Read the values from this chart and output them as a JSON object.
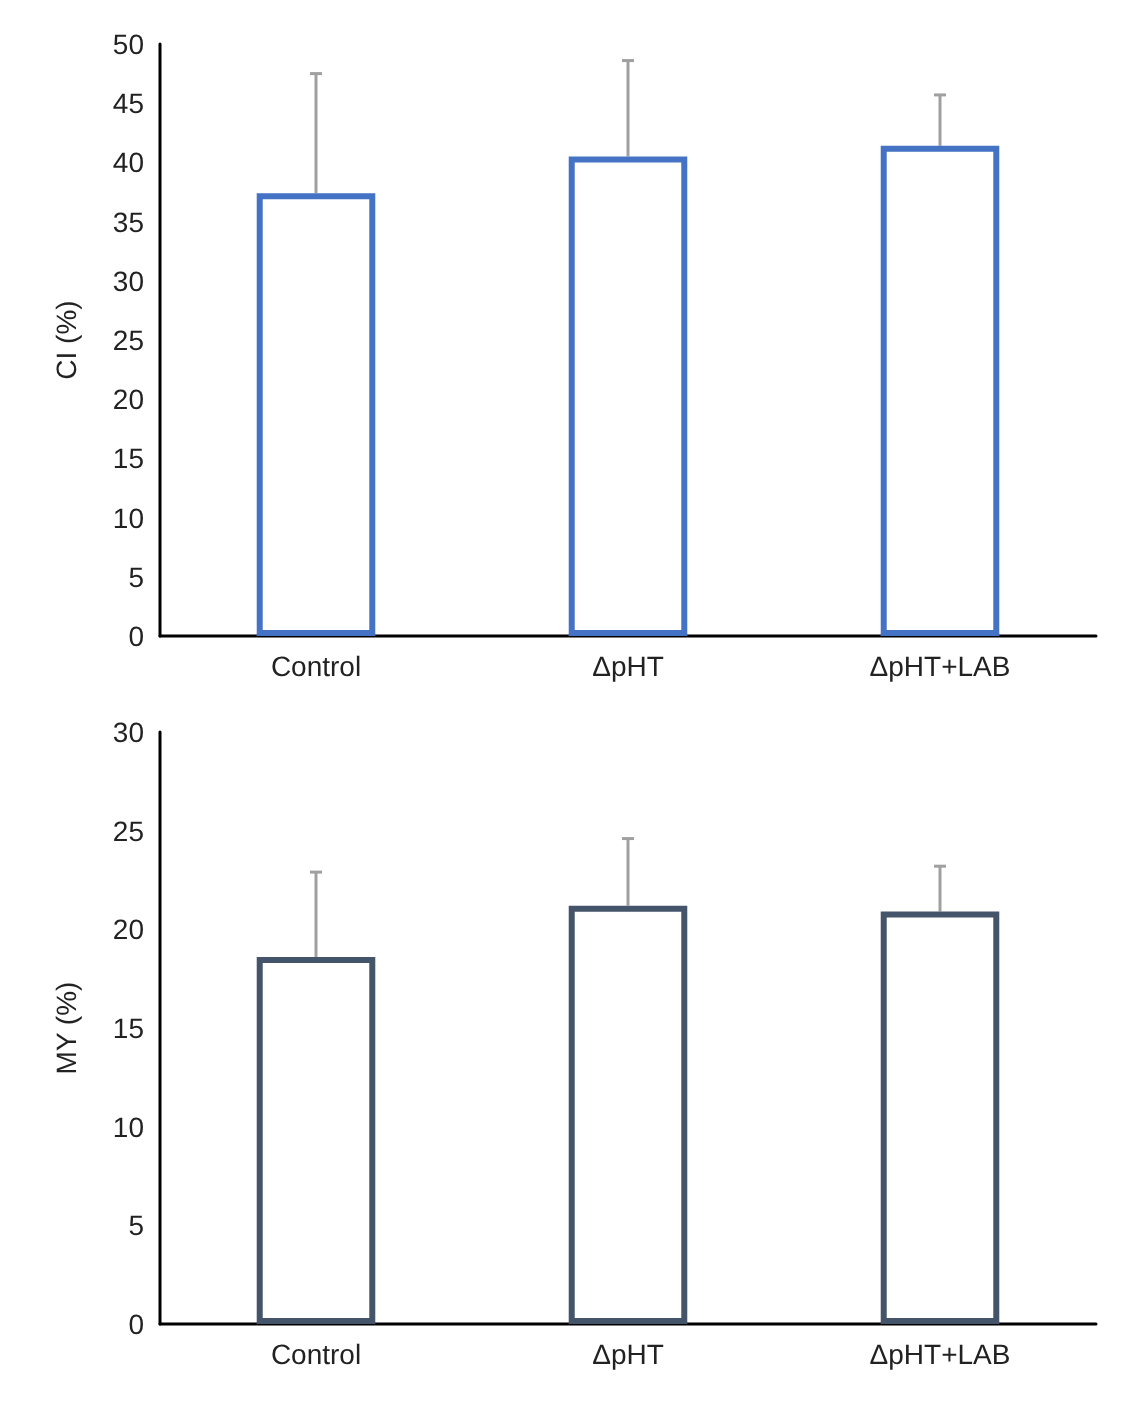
{
  "chart_data": [
    {
      "type": "bar",
      "ylabel": "CI (%)",
      "categories": [
        "Control",
        "ΔpHT",
        "ΔpHT+LAB"
      ],
      "values": [
        37.4,
        40.5,
        41.4
      ],
      "color": "#4472c4",
      "errors": [
        [
          37.4,
          47.5
        ],
        [
          40.5,
          48.6
        ],
        [
          41.4,
          45.7
        ]
      ],
      "ylim": [
        0,
        50
      ],
      "yticks": [
        0,
        5,
        10,
        15,
        20,
        25,
        30,
        35,
        40,
        45,
        50
      ],
      "grid": false
    },
    {
      "type": "bar",
      "ylabel": "MY (%)",
      "categories": [
        "Control",
        "ΔpHT",
        "ΔpHT+LAB"
      ],
      "values": [
        18.6,
        21.2,
        20.9
      ],
      "color": "#44546a",
      "errors": [
        [
          18.6,
          22.9
        ],
        [
          21.2,
          24.6
        ],
        [
          20.9,
          23.2
        ]
      ],
      "ylim": [
        0,
        30
      ],
      "yticks": [
        0,
        5,
        10,
        15,
        20,
        25,
        30
      ],
      "grid": false
    }
  ]
}
